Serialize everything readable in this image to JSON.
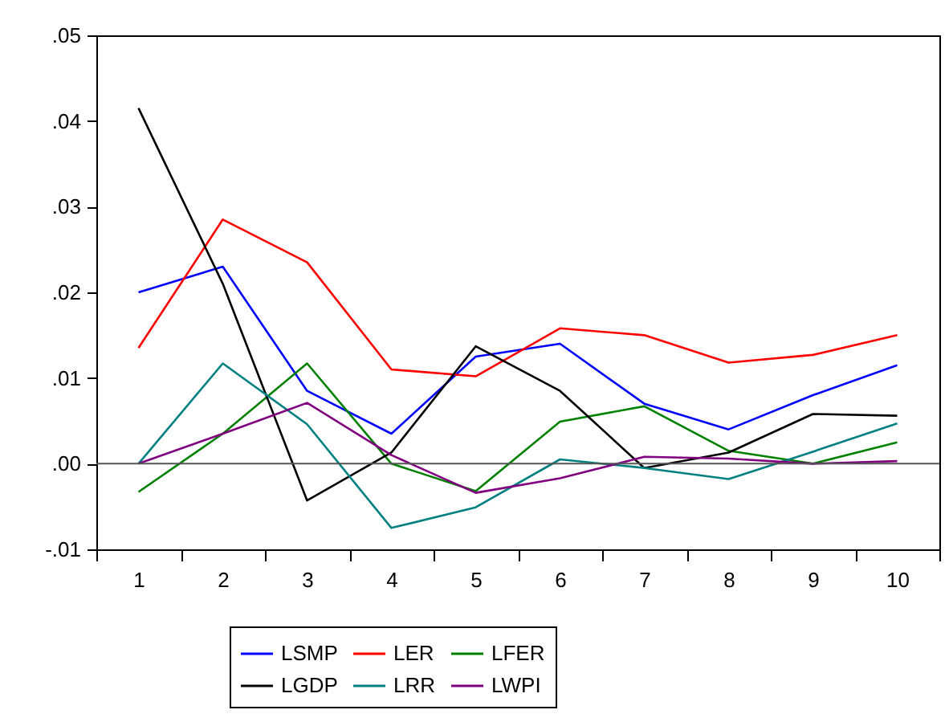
{
  "chart_data": {
    "type": "line",
    "categories": [
      "1",
      "2",
      "3",
      "4",
      "5",
      "6",
      "7",
      "8",
      "9",
      "10"
    ],
    "series": [
      {
        "name": "LSMP",
        "color": "#0000ff",
        "values": [
          0.02,
          0.023,
          0.0085,
          0.0035,
          0.0125,
          0.014,
          0.007,
          0.004,
          0.008,
          0.0115
        ]
      },
      {
        "name": "LER",
        "color": "#ff0000",
        "values": [
          0.0135,
          0.0285,
          0.0235,
          0.011,
          0.0102,
          0.0158,
          0.015,
          0.0118,
          0.0127,
          0.015
        ]
      },
      {
        "name": "LFER",
        "color": "#008000",
        "values": [
          -0.0033,
          0.0035,
          0.0117,
          0.0,
          -0.0032,
          0.0049,
          0.0067,
          0.0015,
          0.0,
          0.0025
        ]
      },
      {
        "name": "LGDP",
        "color": "#000000",
        "values": [
          0.0415,
          0.021,
          -0.0043,
          0.0013,
          0.0137,
          0.0085,
          -0.0005,
          0.0013,
          0.0058,
          0.0056
        ]
      },
      {
        "name": "LRR",
        "color": "#008080",
        "values": [
          0.0,
          0.0117,
          0.0046,
          -0.0075,
          -0.0051,
          0.0005,
          -0.0005,
          -0.0018,
          0.0014,
          0.0047
        ]
      },
      {
        "name": "LWPI",
        "color": "#800080",
        "values": [
          0.0,
          0.0035,
          0.0071,
          0.001,
          -0.0034,
          -0.0017,
          0.0008,
          0.0006,
          0.0,
          0.0003
        ]
      }
    ],
    "ylim": [
      -0.01,
      0.05
    ],
    "yticks": [
      {
        "value": -0.01,
        "label": "-.01"
      },
      {
        "value": 0,
        "label": ".00"
      },
      {
        "value": 0.01,
        "label": ".01"
      },
      {
        "value": 0.02,
        "label": ".02"
      },
      {
        "value": 0.03,
        "label": ".03"
      },
      {
        "value": 0.04,
        "label": ".04"
      },
      {
        "value": 0.05,
        "label": ".05"
      }
    ],
    "ref_lines": [
      {
        "axis": "y",
        "value": 0,
        "color": "#555555"
      }
    ],
    "legend": "bottom",
    "grid": false,
    "marker": "none",
    "line_style": "solid"
  }
}
